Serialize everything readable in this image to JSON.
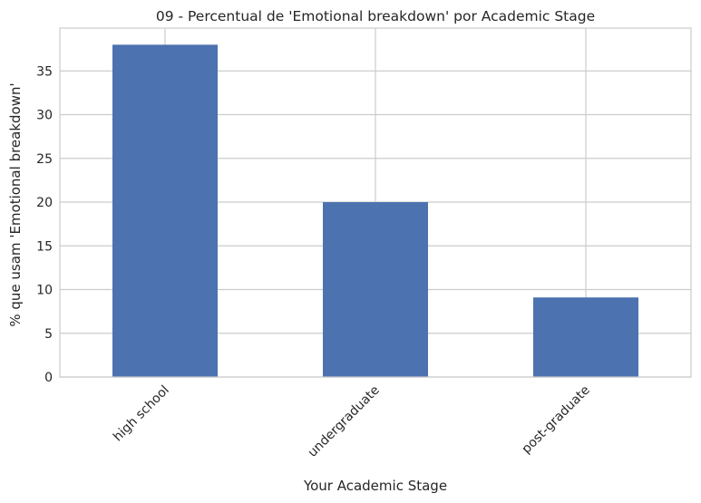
{
  "chart_data": {
    "type": "bar",
    "title": "09 - Percentual de 'Emotional breakdown' por Academic Stage",
    "xlabel": "Your Academic Stage",
    "ylabel": "% que usam 'Emotional breakdown'",
    "categories": [
      "high school",
      "undergraduate",
      "post-graduate"
    ],
    "values": [
      38.0,
      20.0,
      9.1
    ],
    "ylim": [
      0,
      39.9
    ],
    "yticks": [
      0,
      5,
      10,
      15,
      20,
      25,
      30,
      35
    ],
    "grid": true,
    "bar_color": "#4c72b0",
    "grid_color": "#cccccc",
    "spine_color": "#cccccc"
  }
}
